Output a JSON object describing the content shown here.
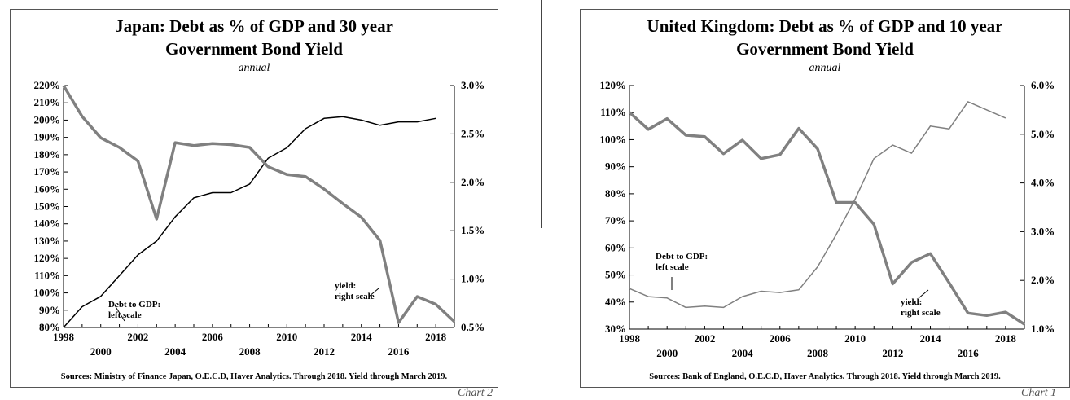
{
  "chart_data": [
    {
      "type": "line",
      "title": "Japan: Debt as % of GDP and 30 year Government Bond Yield",
      "subtitle": "annual",
      "source": "Sources: Ministry of Finance Japan, O.E.C.D, Haver Analytics. Through 2018. Yield through March 2019.",
      "x_tick_labels_upper": [
        "1998",
        "2002",
        "2006",
        "2010",
        "2014",
        "2018"
      ],
      "x_tick_labels_lower": [
        "2000",
        "2004",
        "2008",
        "2012",
        "2016"
      ],
      "xlim": [
        1998,
        2019
      ],
      "left_axis": {
        "ylim": [
          80,
          220
        ],
        "tick_labels": [
          "80%",
          "90%",
          "100%",
          "110%",
          "120%",
          "130%",
          "140%",
          "150%",
          "160%",
          "170%",
          "180%",
          "190%",
          "200%",
          "210%",
          "220%"
        ]
      },
      "right_axis": {
        "ylim": [
          0.5,
          3.0
        ],
        "tick_labels": [
          "0.5%",
          "1.0%",
          "1.5%",
          "2.0%",
          "2.5%",
          "3.0%"
        ]
      },
      "series": [
        {
          "name": "Debt to GDP",
          "axis": "left",
          "color": "#000000",
          "x": [
            1998,
            1999,
            2000,
            2001,
            2002,
            2003,
            2004,
            2005,
            2006,
            2007,
            2008,
            2009,
            2010,
            2011,
            2012,
            2013,
            2014,
            2015,
            2016,
            2017,
            2018
          ],
          "values": [
            80,
            92,
            98,
            110,
            122,
            130,
            144,
            155,
            158,
            158,
            163,
            178,
            184,
            195,
            201,
            202,
            200,
            197,
            199,
            199,
            201
          ]
        },
        {
          "name": "yield",
          "axis": "right",
          "color": "#808080",
          "x": [
            1998,
            1999,
            2000,
            2001,
            2002,
            2003,
            2004,
            2005,
            2006,
            2007,
            2008,
            2009,
            2010,
            2011,
            2012,
            2013,
            2014,
            2015,
            2016,
            2017,
            2018,
            2019
          ],
          "values": [
            3.0,
            2.68,
            2.46,
            2.36,
            2.22,
            1.62,
            2.41,
            2.38,
            2.4,
            2.39,
            2.36,
            2.16,
            2.08,
            2.06,
            1.93,
            1.78,
            1.64,
            1.4,
            0.55,
            0.82,
            0.74,
            0.56
          ]
        }
      ],
      "annotations": [
        {
          "text": "Debt to GDP:\nleft scale"
        },
        {
          "text": "yield:\nright scale"
        }
      ],
      "partial_label": "Chart 2"
    },
    {
      "type": "line",
      "title": "United Kingdom: Debt as % of GDP and 10 year Government Bond Yield",
      "subtitle": "annual",
      "source": "Sources: Bank of England, O.E.C.D, Haver Analytics. Through 2018. Yield through March 2019.",
      "x_tick_labels_upper": [
        "1998",
        "2002",
        "2006",
        "2010",
        "2014",
        "2018"
      ],
      "x_tick_labels_lower": [
        "2000",
        "2004",
        "2008",
        "2012",
        "2016"
      ],
      "xlim": [
        1998,
        2019
      ],
      "left_axis": {
        "ylim": [
          30,
          120
        ],
        "tick_labels": [
          "30%",
          "40%",
          "50%",
          "60%",
          "70%",
          "80%",
          "90%",
          "100%",
          "110%",
          "120%"
        ]
      },
      "right_axis": {
        "ylim": [
          1.0,
          6.0
        ],
        "tick_labels": [
          "1.0%",
          "2.0%",
          "3.0%",
          "4.0%",
          "5.0%",
          "6.0%"
        ]
      },
      "series": [
        {
          "name": "Debt to GDP",
          "axis": "left",
          "color": "#808080",
          "x": [
            1998,
            1999,
            2000,
            2001,
            2002,
            2003,
            2004,
            2005,
            2006,
            2007,
            2008,
            2009,
            2010,
            2011,
            2012,
            2013,
            2014,
            2015,
            2016,
            2017,
            2018
          ],
          "values": [
            45,
            42,
            41.5,
            38,
            38.5,
            38,
            42,
            44,
            43.5,
            44.5,
            53,
            65,
            78,
            93,
            98,
            95,
            105,
            104,
            114,
            111,
            108
          ]
        },
        {
          "name": "yield",
          "axis": "right",
          "color": "#808080",
          "x": [
            1998,
            1999,
            2000,
            2001,
            2002,
            2003,
            2004,
            2005,
            2006,
            2007,
            2008,
            2009,
            2010,
            2011,
            2012,
            2013,
            2014,
            2015,
            2016,
            2017,
            2018,
            2019
          ],
          "values": [
            5.45,
            5.1,
            5.32,
            4.98,
            4.95,
            4.6,
            4.88,
            4.5,
            4.58,
            5.12,
            4.7,
            3.6,
            3.6,
            3.15,
            1.93,
            2.37,
            2.55,
            1.95,
            1.33,
            1.28,
            1.35,
            1.1
          ]
        }
      ],
      "annotations": [
        {
          "text": "Debt to GDP:\nleft scale"
        },
        {
          "text": "yield:\nright scale"
        }
      ],
      "partial_label": "Chart 1"
    }
  ]
}
